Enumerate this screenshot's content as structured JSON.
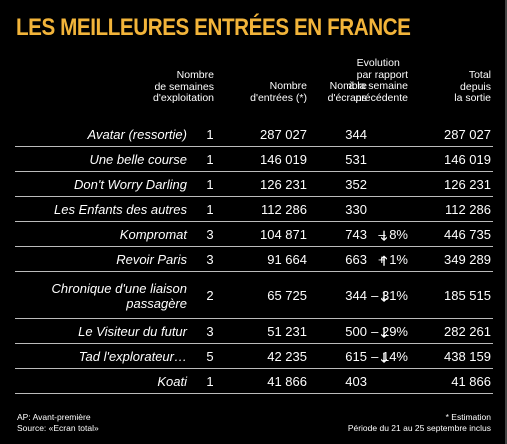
{
  "title": "LES MEILLEURES ENTRÉES EN FRANCE",
  "headers": {
    "weeks": [
      "Nombre",
      "de semaines",
      "d'exploitation"
    ],
    "entries": [
      "Nombre",
      "d'entrées (*)"
    ],
    "screens": [
      "Nombre",
      "d'écrans"
    ],
    "evolution": [
      "Evolution",
      "par rapport",
      "à la semaine",
      "précédente"
    ],
    "total": [
      "Total",
      "depuis",
      "la sortie"
    ]
  },
  "rows": [
    {
      "title": [
        "Avatar (ressortie)"
      ],
      "weeks": "1",
      "entries": "287 027",
      "screens": "344",
      "arrow": "",
      "evolution": "",
      "total": "287 027"
    },
    {
      "title": [
        "Une belle course"
      ],
      "weeks": "1",
      "entries": "146 019",
      "screens": "531",
      "arrow": "",
      "evolution": "",
      "total": "146 019"
    },
    {
      "title": [
        "Don't Worry Darling"
      ],
      "weeks": "1",
      "entries": "126 231",
      "screens": "352",
      "arrow": "",
      "evolution": "",
      "total": "126 231"
    },
    {
      "title": [
        "Les Enfants des autres"
      ],
      "weeks": "1",
      "entries": "112 286",
      "screens": "330",
      "arrow": "",
      "evolution": "",
      "total": "112 286"
    },
    {
      "title": [
        "Kompromat"
      ],
      "weeks": "3",
      "entries": "104 871",
      "screens": "743",
      "arrow": "down",
      "evolution": "– 8%",
      "total": "446 735"
    },
    {
      "title": [
        "Revoir Paris"
      ],
      "weeks": "3",
      "entries": "91 664",
      "screens": "663",
      "arrow": "up",
      "evolution": "+ 1%",
      "total": "349 289"
    },
    {
      "title": [
        "Chronique d'une liaison",
        "passagère"
      ],
      "weeks": "2",
      "entries": "65 725",
      "screens": "344",
      "arrow": "down",
      "evolution": "– 31%",
      "total": "185 515"
    },
    {
      "title": [
        "Le Visiteur du futur"
      ],
      "weeks": "3",
      "entries": "51 231",
      "screens": "500",
      "arrow": "down",
      "evolution": "– 29%",
      "total": "282 261"
    },
    {
      "title": [
        "Tad l'explorateur…"
      ],
      "weeks": "5",
      "entries": "42 235",
      "screens": "615",
      "arrow": "down",
      "evolution": "– 14%",
      "total": "438 159"
    },
    {
      "title": [
        "Koati"
      ],
      "weeks": "1",
      "entries": "41 866",
      "screens": "403",
      "arrow": "",
      "evolution": "",
      "total": "41 866"
    }
  ],
  "footer": {
    "left": [
      "AP: Avant-première",
      "Source: «Ecran total»"
    ],
    "right": [
      "* Estimation",
      "Période du 21 au 25 septembre inclus"
    ]
  },
  "colors": {
    "title": "#f2b43a",
    "background": "#000000",
    "text": "#ffffff"
  }
}
